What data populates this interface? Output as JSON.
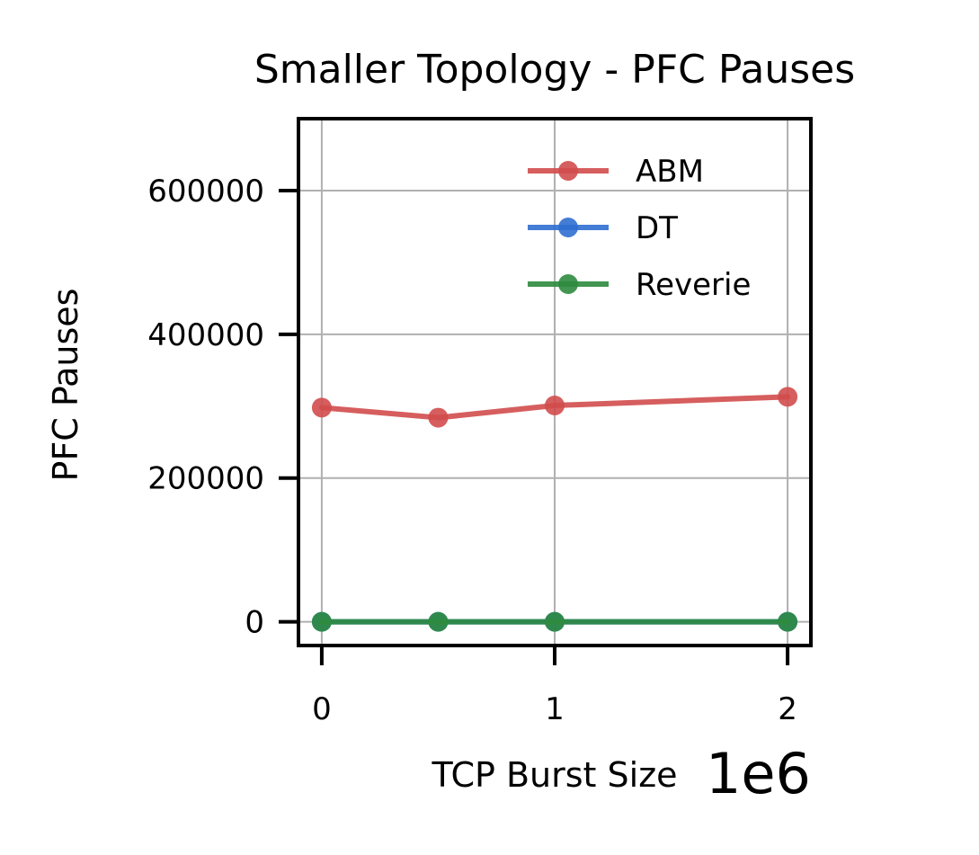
{
  "chart_data": {
    "type": "line",
    "title": "Smaller Topology - PFC Pauses",
    "xlabel": "TCP Burst Size",
    "ylabel": "PFC Pauses",
    "x_offset_text": "1e6",
    "x": [
      0,
      500000,
      1000000,
      2000000
    ],
    "xlim": [
      -100000,
      2100000
    ],
    "ylim": [
      -33000,
      700000
    ],
    "xticks": [
      0,
      1000000,
      2000000
    ],
    "xtick_labels": [
      "0",
      "1",
      "2"
    ],
    "yticks": [
      0,
      200000,
      400000,
      600000
    ],
    "ytick_labels": [
      "0",
      "200000",
      "400000",
      "600000"
    ],
    "grid": true,
    "legend_position": "top-right",
    "series": [
      {
        "name": "ABM",
        "color": "#d24c4c",
        "values": [
          298000,
          284000,
          301000,
          313000
        ]
      },
      {
        "name": "DT",
        "color": "#2f6fd0",
        "values": [
          0,
          0,
          0,
          0
        ]
      },
      {
        "name": "Reverie",
        "color": "#2e8b3e",
        "values": [
          0,
          0,
          0,
          0
        ]
      }
    ]
  }
}
